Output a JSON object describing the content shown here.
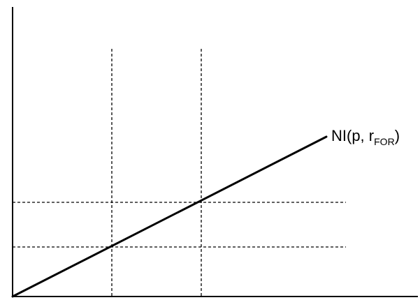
{
  "diagram": {
    "curve_label": {
      "main_prefix": "NI(p, r",
      "subscript": "FOR",
      "main_suffix": ")"
    },
    "colors": {
      "ink": "#000000",
      "background": "#ffffff"
    }
  }
}
